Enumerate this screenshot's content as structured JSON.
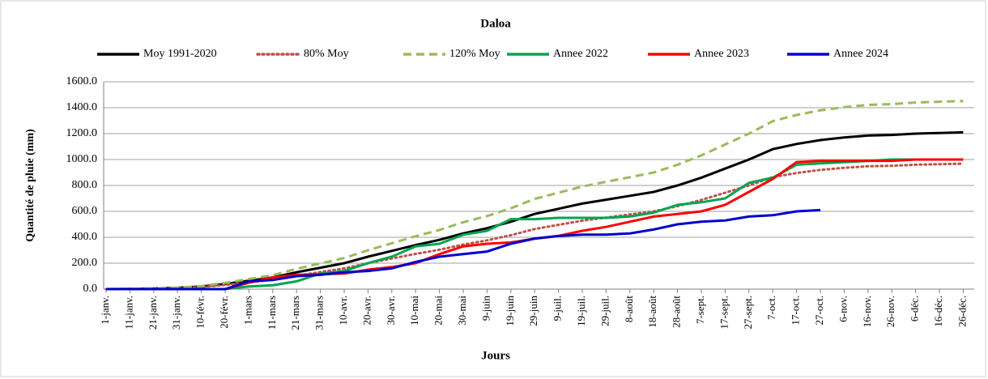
{
  "chart_data": {
    "type": "line",
    "title": "Daloa",
    "x_label": "Jours",
    "y_label": "Quantité de pluie (mm)",
    "categories": [
      "1-janv.",
      "11-janv.",
      "21-janv.",
      "31-janv.",
      "10-févr.",
      "20-févr.",
      "1-mars",
      "11-mars",
      "21-mars",
      "31-mars",
      "10-avr.",
      "20-avr.",
      "30-avr.",
      "10-mai",
      "20-mai",
      "30-mai",
      "9-juin",
      "19-juin",
      "29-juin",
      "9-juil.",
      "19-juil.",
      "29-juil.",
      "8-août",
      "18-août",
      "28-août",
      "7-sept.",
      "17-sept.",
      "27-sept.",
      "7-oct.",
      "17-oct.",
      "27-oct.",
      "6-nov.",
      "16-nov.",
      "26-nov.",
      "6-déc.",
      "16-déc.",
      "26-déc."
    ],
    "series": [
      {
        "name": "Moy 1991-2020",
        "color": "#000000",
        "dash": "solid",
        "values": [
          0,
          2,
          5,
          10,
          20,
          40,
          65,
          90,
          130,
          165,
          200,
          250,
          295,
          340,
          380,
          430,
          470,
          520,
          580,
          620,
          660,
          690,
          720,
          750,
          800,
          860,
          930,
          1000,
          1080,
          1120,
          1150,
          1170,
          1185,
          1190,
          1200,
          1205,
          1210
        ]
      },
      {
        "name": "80% Moy",
        "color": "#c0504d",
        "dash": "dotted",
        "values": [
          0,
          1.6,
          4,
          8,
          16,
          32,
          52,
          72,
          104,
          132,
          160,
          200,
          236,
          272,
          304,
          344,
          376,
          416,
          464,
          496,
          528,
          552,
          576,
          600,
          640,
          688,
          744,
          800,
          864,
          896,
          920,
          936,
          948,
          952,
          960,
          964,
          968
        ]
      },
      {
        "name": "120% Moy",
        "color": "#9bbb59",
        "dash": "dashed",
        "values": [
          0,
          2.4,
          6,
          12,
          24,
          48,
          78,
          108,
          156,
          198,
          240,
          300,
          354,
          408,
          456,
          516,
          564,
          624,
          696,
          744,
          792,
          828,
          864,
          900,
          960,
          1032,
          1116,
          1200,
          1296,
          1344,
          1380,
          1404,
          1422,
          1428,
          1440,
          1446,
          1452
        ]
      },
      {
        "name": "Annee 2022",
        "color": "#00a550",
        "dash": "solid",
        "values": [
          0,
          0,
          0,
          0,
          0,
          0,
          20,
          30,
          60,
          120,
          140,
          200,
          250,
          330,
          350,
          420,
          450,
          540,
          540,
          550,
          550,
          550,
          560,
          590,
          650,
          670,
          700,
          820,
          860,
          960,
          970,
          980,
          990,
          1000,
          1000,
          1000,
          1000
        ]
      },
      {
        "name": "Annee 2023",
        "color": "#ff0000",
        "dash": "solid",
        "values": [
          0,
          0,
          0,
          0,
          0,
          0,
          50,
          90,
          110,
          115,
          120,
          150,
          170,
          200,
          270,
          330,
          350,
          360,
          390,
          410,
          450,
          480,
          520,
          560,
          580,
          600,
          650,
          750,
          850,
          980,
          990,
          990,
          990,
          990,
          1000,
          1000,
          1000
        ]
      },
      {
        "name": "Annee 2024",
        "color": "#0000cc",
        "dash": "solid",
        "values": [
          0,
          0,
          0,
          0,
          0,
          0,
          60,
          70,
          100,
          110,
          130,
          140,
          160,
          210,
          250,
          270,
          290,
          350,
          390,
          410,
          420,
          420,
          430,
          460,
          500,
          520,
          530,
          560,
          570,
          600,
          610,
          null,
          null,
          null,
          null,
          null,
          null
        ]
      }
    ],
    "ylim": [
      0,
      1600
    ],
    "yticks": [
      {
        "value": 0,
        "label": "0.0"
      },
      {
        "value": 200,
        "label": "200.0"
      },
      {
        "value": 400,
        "label": "400.0"
      },
      {
        "value": 600,
        "label": "600.0"
      },
      {
        "value": 800,
        "label": "800.0"
      },
      {
        "value": 1000,
        "label": "1000.0"
      },
      {
        "value": 1200,
        "label": "1200.0"
      },
      {
        "value": 1400,
        "label": "1400.0"
      },
      {
        "value": 1600,
        "label": "1600.0"
      }
    ],
    "grid": true,
    "legend": "top"
  }
}
